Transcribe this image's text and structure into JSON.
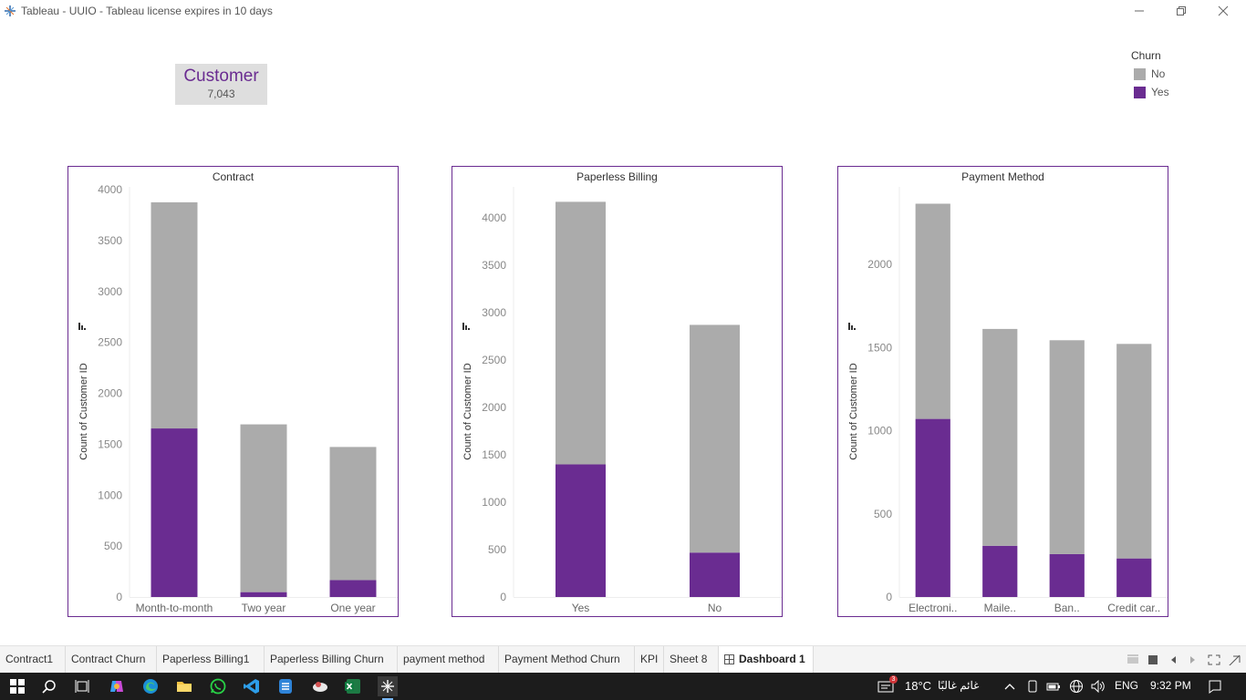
{
  "window": {
    "title": "Tableau - UUIO - Tableau license expires in 10 days"
  },
  "kpi": {
    "title": "Customer",
    "value": "7,043"
  },
  "legend": {
    "title": "Churn",
    "items": [
      {
        "label": "No",
        "color": "#ababab"
      },
      {
        "label": "Yes",
        "color": "#6a2c91"
      }
    ]
  },
  "colors": {
    "accent": "#6a2c91",
    "no": "#ababab",
    "yes": "#6a2c91"
  },
  "chart_data": [
    {
      "type": "bar",
      "stacked": true,
      "title": "Contract",
      "ylabel": "Count of Customer ID",
      "ylim": [
        0,
        4000
      ],
      "yticks": [
        0,
        500,
        1000,
        1500,
        2000,
        2500,
        3000,
        3500,
        4000
      ],
      "categories": [
        "Month-to-month",
        "Two year",
        "One year"
      ],
      "series": [
        {
          "name": "No",
          "values": [
            2220,
            1647,
            1307
          ]
        },
        {
          "name": "Yes",
          "values": [
            1655,
            48,
            166
          ]
        }
      ]
    },
    {
      "type": "bar",
      "stacked": true,
      "title": "Paperless Billing",
      "ylabel": "Count of Customer ID",
      "ylim": [
        0,
        4300
      ],
      "yticks": [
        0,
        500,
        1000,
        1500,
        2000,
        2500,
        3000,
        3500,
        4000
      ],
      "categories": [
        "Yes",
        "No"
      ],
      "series": [
        {
          "name": "No",
          "values": [
            2771,
            2403
          ]
        },
        {
          "name": "Yes",
          "values": [
            1400,
            469
          ]
        }
      ]
    },
    {
      "type": "bar",
      "stacked": true,
      "title": "Payment Method",
      "ylabel": "Count of Customer ID",
      "ylim": [
        0,
        2450
      ],
      "yticks": [
        0,
        500,
        1000,
        1500,
        2000
      ],
      "categories": [
        "Electroni..",
        "Maile..",
        "Ban..",
        "Credit car.."
      ],
      "series": [
        {
          "name": "No",
          "values": [
            1294,
            1304,
            1286,
            1290
          ]
        },
        {
          "name": "Yes",
          "values": [
            1071,
            308,
            258,
            232
          ]
        }
      ]
    }
  ],
  "sheet_tabs": [
    {
      "label": "Contract1"
    },
    {
      "label": "Contract Churn"
    },
    {
      "label": "Paperless Billing1"
    },
    {
      "label": "Paperless Billing Churn"
    },
    {
      "label": "payment method"
    },
    {
      "label": "Payment Method Churn"
    },
    {
      "label": "KPI"
    },
    {
      "label": "Sheet 8"
    },
    {
      "label": "Dashboard 1",
      "active": true
    }
  ],
  "taskbar": {
    "weather": "18°C",
    "weather_desc": "غائم غالبًا",
    "notification_badge": "3",
    "language": "ENG",
    "time": "9:32 PM"
  }
}
